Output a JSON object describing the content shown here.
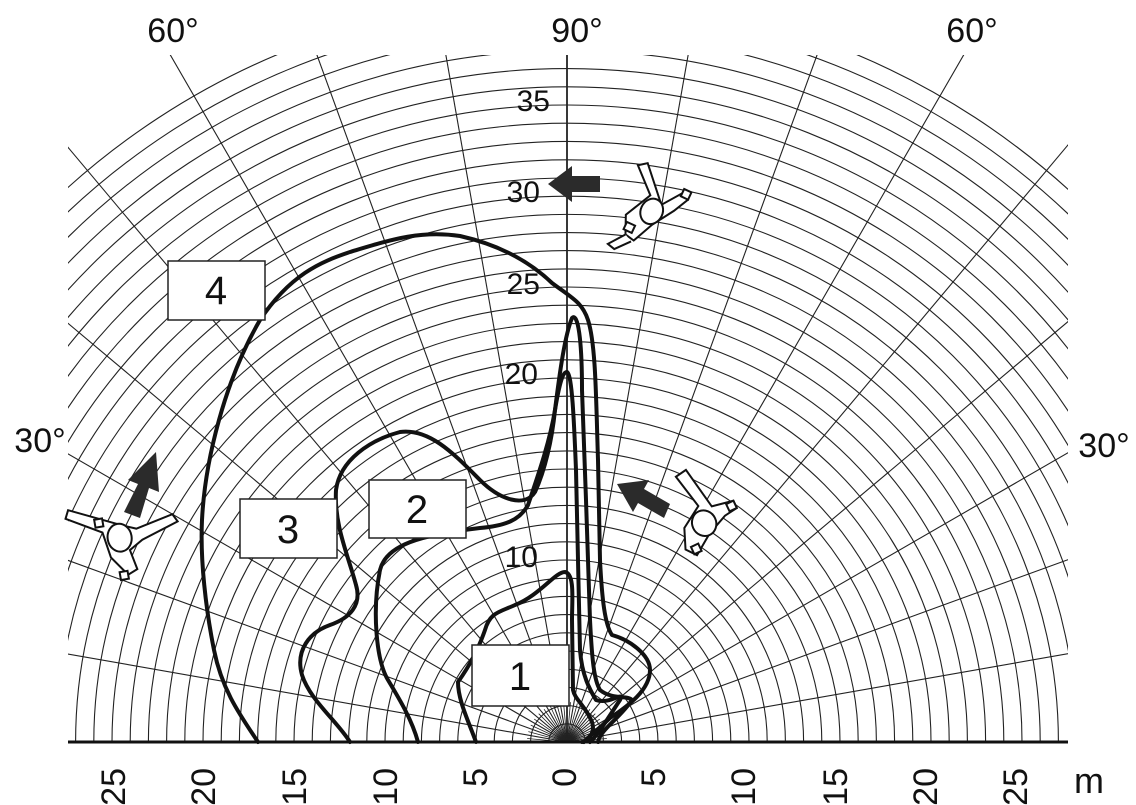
{
  "angle_labels": {
    "top_center": "90°",
    "top_left": "60°",
    "top_right": "60°",
    "mid_left": "30°",
    "mid_right": "30°"
  },
  "x_axis": {
    "ticks": [
      "25",
      "20",
      "15",
      "10",
      "5",
      "0",
      "5",
      "10",
      "15",
      "20",
      "25"
    ],
    "unit": "m"
  },
  "y_axis": {
    "ticks": [
      "10",
      "20",
      "25",
      "30",
      "35"
    ]
  },
  "zones": [
    {
      "id": "1",
      "label": "1"
    },
    {
      "id": "2",
      "label": "2"
    },
    {
      "id": "3",
      "label": "3"
    },
    {
      "id": "4",
      "label": "4"
    }
  ],
  "colors": {
    "curve": "#111111",
    "grid": "#222222",
    "arrow": "#2b2b2b",
    "box_fill": "#ffffff"
  },
  "icons": [
    "person-top-view-icon",
    "arrow-icon"
  ]
}
